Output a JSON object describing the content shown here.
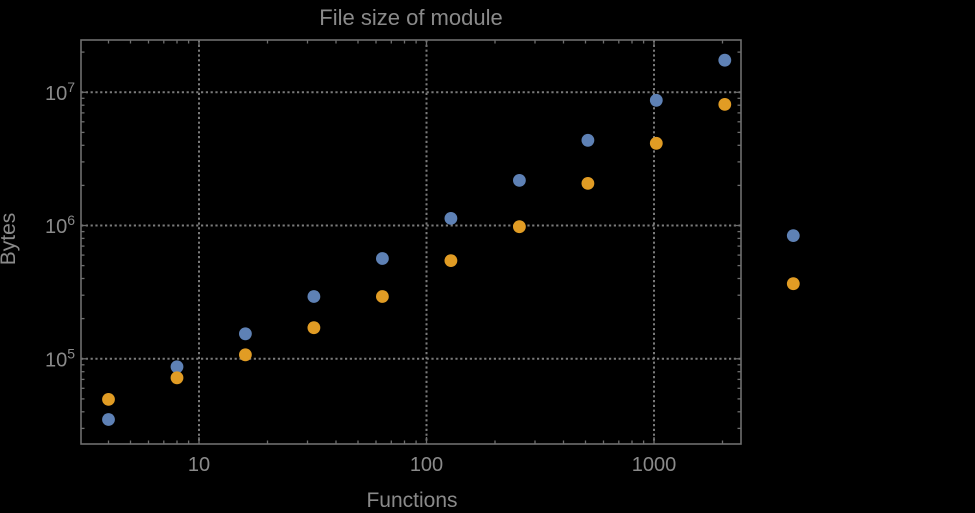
{
  "window": {
    "background": "#000000"
  },
  "chart_data": {
    "type": "scatter",
    "title": "File size of module",
    "xlabel": "Functions",
    "ylabel": "Bytes",
    "x_scale": "log",
    "y_scale": "log",
    "grid": "dotted at decades",
    "legend": "none",
    "clip_points": false,
    "xlim": [
      3.0,
      2400
    ],
    "ylim": [
      23000,
      24500000
    ],
    "x_ticks": [
      {
        "value": 10,
        "label": "10"
      },
      {
        "value": 100,
        "label": "100"
      },
      {
        "value": 1000,
        "label": "1000"
      }
    ],
    "y_ticks": [
      {
        "value": 100000,
        "base": "10",
        "exp": "5"
      },
      {
        "value": 1000000,
        "base": "10",
        "exp": "6"
      },
      {
        "value": 10000000,
        "base": "10",
        "exp": "7"
      }
    ],
    "series": [
      {
        "name": "series-1-blue",
        "color": "#5e81b5",
        "x": [
          4,
          8,
          16,
          32,
          64,
          128,
          256,
          512,
          1024,
          2048,
          4096
        ],
        "y": [
          35000,
          87000,
          154000,
          293000,
          565000,
          1130000,
          2180000,
          4360000,
          8700000,
          17400000,
          840000
        ]
      },
      {
        "name": "series-2-orange",
        "color": "#e19c24",
        "x": [
          4,
          8,
          16,
          32,
          64,
          128,
          256,
          512,
          1024,
          2048,
          4096
        ],
        "y": [
          49500,
          72000,
          107000,
          171000,
          293000,
          545000,
          980000,
          2070000,
          4140000,
          8100000,
          366000
        ]
      }
    ],
    "colors": {
      "frame": "#6e6e6e",
      "grid": "#7a7a7a",
      "text": "#8a8a8a",
      "background": "#000000"
    }
  }
}
